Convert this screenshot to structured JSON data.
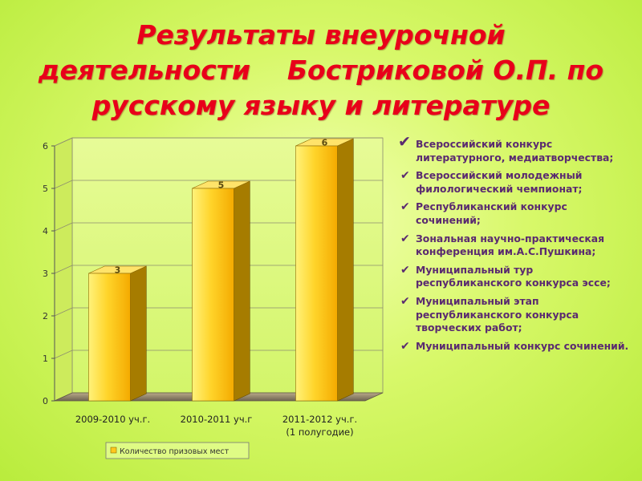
{
  "title_lines": [
    "Результаты внеурочной",
    "деятельности    Бостриковой О.П. по",
    "русскому языку и литературе"
  ],
  "achievements": [
    "Всероссийский конкурс литературного, медиатворчества;",
    "Всероссийский молодежный филологический чемпионат;",
    "Республиканский конкурс сочинений;",
    "Зональная научно-практическая конференция им.А.С.Пушкина;",
    "Муниципальный тур республиканского конкурса эссе;",
    "Муниципальный этап республиканского конкурса творческих работ;",
    "Муниципальный конкурс сочинений."
  ],
  "icons": {
    "bullet": "check-icon"
  },
  "colors": {
    "title": "#e8001a",
    "bar_light": "#fff27a",
    "bar_mid": "#ffc81e",
    "bar_dark": "#a47a00",
    "list_text": "#5a2a70"
  },
  "chart_data": {
    "type": "bar",
    "categories": [
      [
        "2009-2010 уч.г."
      ],
      [
        "2010-2011 уч.г"
      ],
      [
        "2011-2012 уч.г.",
        "(1 полугодие)"
      ]
    ],
    "series": [
      {
        "name": "Количество призовых мест",
        "values": [
          3,
          5,
          6
        ]
      }
    ],
    "data_labels": [
      "3",
      "5",
      "6"
    ],
    "ylim": [
      0,
      6
    ],
    "yticks": [
      "0",
      "1",
      "2",
      "3",
      "4",
      "5",
      "6"
    ],
    "grid": true,
    "legend_position": "bottom",
    "style": "3d"
  }
}
